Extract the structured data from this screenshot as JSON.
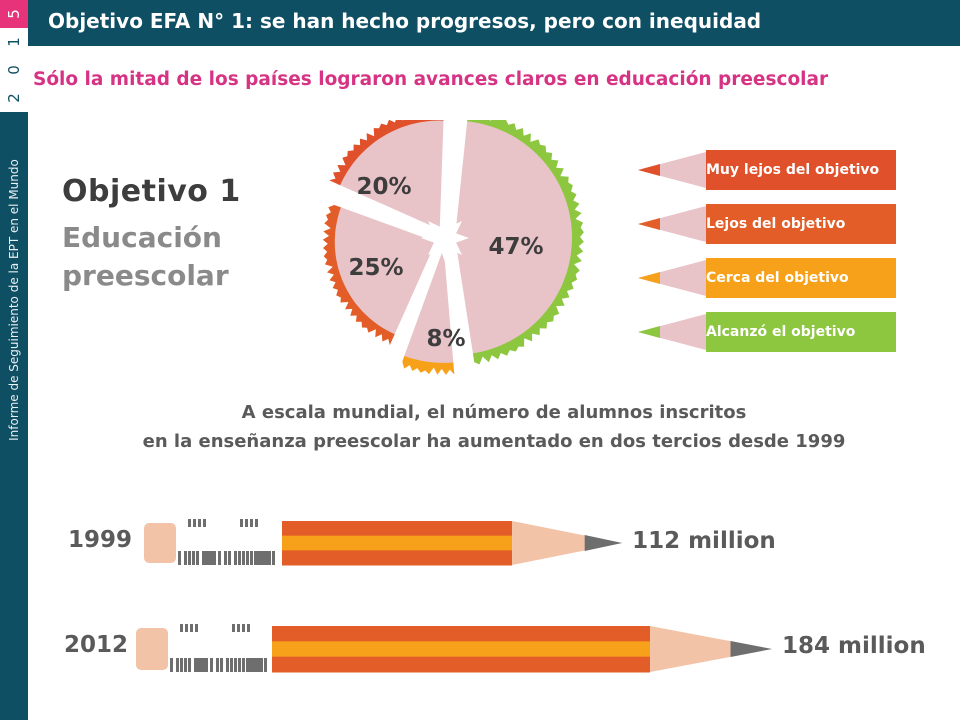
{
  "header": {
    "title": "Objetivo EFA N° 1: se han hecho progresos, pero con inequidad"
  },
  "sidebar": {
    "year_digits": [
      "5",
      "1",
      "0",
      "2"
    ],
    "vertical_text": "Informe de Seguimiento de la EPT en el Mundo"
  },
  "subtitle": "Sólo la mitad de los países lograron avances claros en educación preescolar",
  "goal": {
    "title": "Objetivo 1",
    "subtitle_line1": "Educación",
    "subtitle_line2": "preescolar"
  },
  "caption": {
    "line1": "A escala mundial, el número de alumnos inscritos",
    "line2": "en la enseñanza preescolar ha aumentado en dos tercios desde 1999"
  },
  "colors": {
    "very_far": "#e0502a",
    "far": "#e25d27",
    "close": "#f7a11a",
    "achieved": "#8dc63f",
    "slice_fill": "#e8c3c8",
    "header": "#0f4f63",
    "subtitle": "#d63384"
  },
  "chart_data": [
    {
      "type": "pie",
      "title": "",
      "slices": [
        {
          "label": "Alcanzó el objetivo",
          "value": 47,
          "display": "47%",
          "color": "#8dc63f"
        },
        {
          "label": "Cerca del objetivo",
          "value": 8,
          "display": "8%",
          "color": "#f7a11a"
        },
        {
          "label": "Lejos del objetivo",
          "value": 25,
          "display": "25%",
          "color": "#e25d27"
        },
        {
          "label": "Muy lejos del objetivo",
          "value": 20,
          "display": "20%",
          "color": "#e0502a"
        }
      ],
      "legend": [
        {
          "label": "Muy lejos del objetivo",
          "color": "#e0502a"
        },
        {
          "label": "Lejos del objetivo",
          "color": "#e25d27"
        },
        {
          "label": "Cerca del objetivo",
          "color": "#f7a11a"
        },
        {
          "label": "Alcanzó el objetivo",
          "color": "#8dc63f"
        }
      ],
      "legend_position": "right"
    },
    {
      "type": "bar",
      "orientation": "horizontal",
      "categories": [
        "1999",
        "2012"
      ],
      "values": [
        112,
        184
      ],
      "value_labels": [
        "112 million",
        "184 million"
      ],
      "unit": "million"
    }
  ]
}
